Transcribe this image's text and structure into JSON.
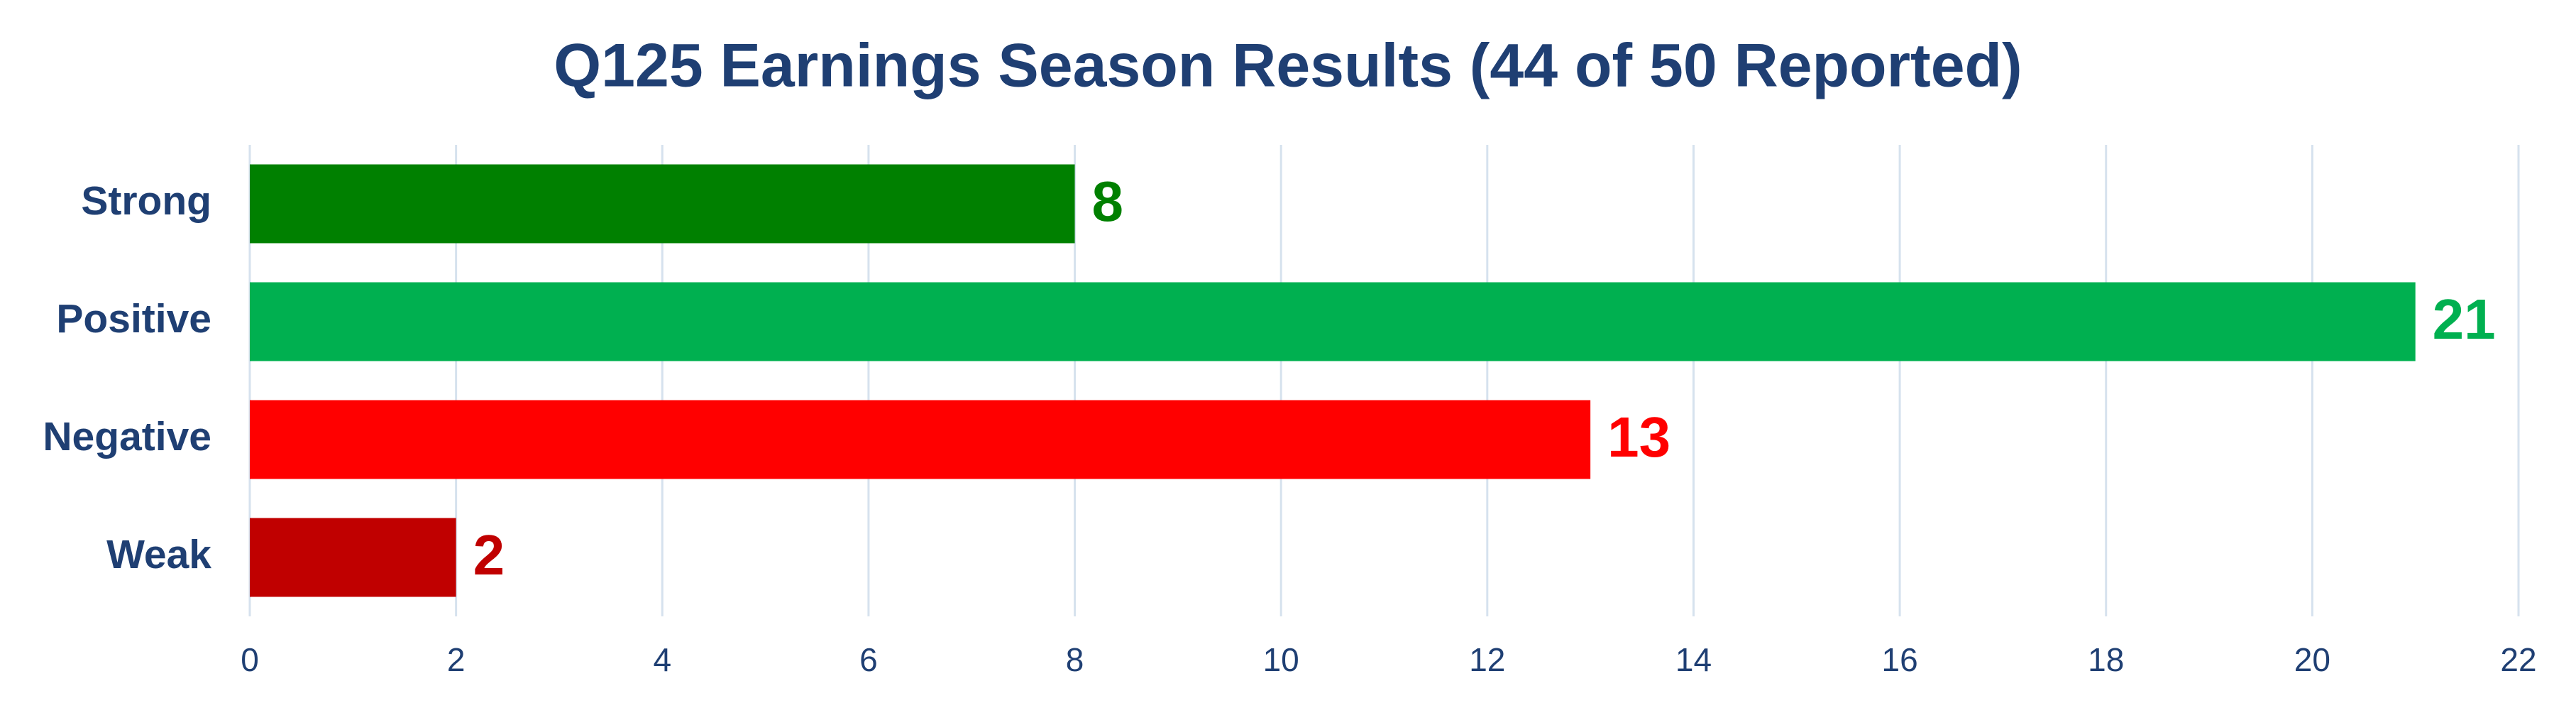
{
  "chart_data": {
    "type": "bar",
    "orientation": "horizontal",
    "title": "Q125 Earnings Season Results (44 of 50 Reported)",
    "categories": [
      "Strong",
      "Positive",
      "Negative",
      "Weak"
    ],
    "values": [
      8,
      21,
      13,
      2
    ],
    "colors": [
      "#008000",
      "#00b050",
      "#ff0000",
      "#c00000"
    ],
    "xlim": [
      0,
      22
    ],
    "xticks": [
      0,
      2,
      4,
      6,
      8,
      10,
      12,
      14,
      16,
      18,
      20,
      22
    ],
    "grid": true
  }
}
